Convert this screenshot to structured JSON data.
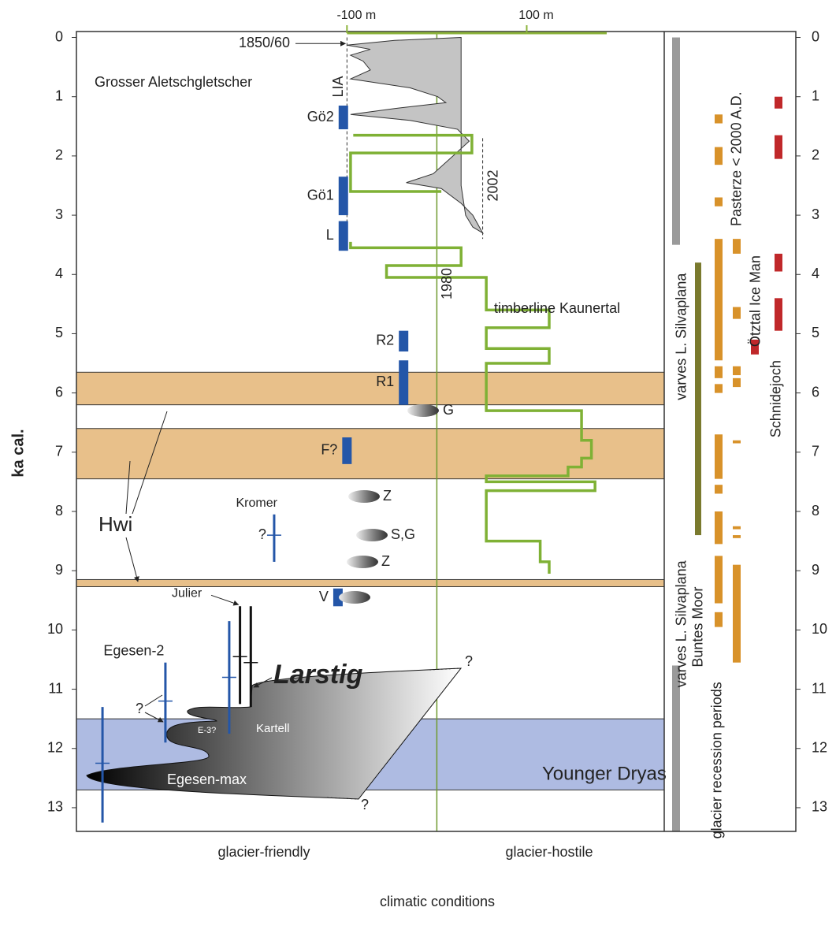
{
  "chart_data": {
    "type": "timeline",
    "y_label": "ka cal.",
    "x_label": "climatic conditions",
    "x_side_labels": [
      "glacier-friendly",
      "glacier-hostile"
    ],
    "ylim": [
      -0.1,
      13.4
    ],
    "yticks": [
      0,
      1,
      2,
      3,
      4,
      5,
      6,
      7,
      8,
      9,
      10,
      11,
      12,
      13
    ],
    "xlim": [
      -401,
      253
    ],
    "xticks": [
      {
        "value": -100,
        "label": "-100 m"
      },
      {
        "value": 100,
        "label": "100 m"
      }
    ],
    "axis_color": "#8cb43c",
    "reference_line": {
      "label": "1980",
      "value": 0,
      "color": "#6f9a2e"
    },
    "hwi": {
      "label": "Hwi",
      "color": "#e8c08a",
      "intervals": [
        [
          5.65,
          6.2
        ],
        [
          6.6,
          7.45
        ],
        [
          9.15,
          9.27
        ]
      ]
    },
    "younger_dryas": {
      "label": "Younger Dryas",
      "color": "#aebbe2",
      "interval": [
        11.5,
        12.7
      ]
    },
    "aletsch": {
      "label": "Grosser Aletschgletscher",
      "color": "#c4c4c4",
      "x": [
        27,
        -47,
        -100,
        -74,
        -96,
        -82,
        -74,
        -96,
        -30,
        1,
        10,
        -47,
        -96,
        -30,
        23,
        36,
        18,
        -4,
        -34,
        5,
        27,
        40,
        51,
        40,
        32,
        27,
        27
      ],
      "t": [
        0,
        0.05,
        0.13,
        0.2,
        0.3,
        0.4,
        0.55,
        0.7,
        0.85,
        1.0,
        1.1,
        1.2,
        1.3,
        1.4,
        1.55,
        1.75,
        2.0,
        2.3,
        2.45,
        2.55,
        2.8,
        3.0,
        3.3,
        3.2,
        3.0,
        2.5,
        0
      ]
    },
    "lia": {
      "label": "LIA",
      "value": -100,
      "interval": [
        0,
        3.6
      ]
    },
    "marker_1850": {
      "label": "1850/60",
      "value": 0.13
    },
    "line_2002": {
      "label": "2002",
      "value": 51,
      "interval": [
        1.7,
        3.4
      ]
    },
    "timberline": {
      "label": "timberline Kaunertal",
      "color": "#7fb135",
      "x": [
        -93,
        39,
        39,
        -96,
        -96,
        5,
        null,
        -96,
        -96,
        27,
        27,
        -56,
        -56,
        55,
        55,
        125,
        125,
        55,
        55,
        125,
        125,
        55,
        55,
        161,
        161,
        172,
        172,
        161,
        161,
        146,
        146,
        55,
        55,
        176,
        176,
        55,
        55,
        115,
        115,
        125,
        125
      ],
      "t": [
        1.65,
        1.65,
        1.95,
        1.95,
        2.6,
        2.6,
        null,
        3.45,
        3.55,
        3.55,
        3.85,
        3.85,
        4.05,
        4.05,
        4.6,
        4.6,
        4.9,
        4.9,
        5.25,
        5.25,
        5.5,
        5.5,
        6.3,
        6.3,
        6.8,
        6.8,
        7.1,
        7.1,
        7.25,
        7.25,
        7.4,
        7.4,
        7.5,
        7.5,
        7.65,
        7.65,
        8.5,
        8.5,
        8.85,
        8.85,
        9.05
      ]
    },
    "advances": {
      "color": "#2456a8",
      "items": [
        {
          "label": "Gö2",
          "x": -104,
          "from": 1.15,
          "to": 1.55
        },
        {
          "label": "Gö1",
          "x": -104,
          "from": 2.35,
          "to": 3.0
        },
        {
          "label": "L",
          "x": -104,
          "from": 3.1,
          "to": 3.6
        },
        {
          "label": "R2",
          "x": -37,
          "from": 4.95,
          "to": 5.3
        },
        {
          "label": "R1",
          "x": -37,
          "from": 5.45,
          "to": 6.2
        },
        {
          "label": "F?",
          "x": -100,
          "from": 6.75,
          "to": 7.2
        },
        {
          "label": "V",
          "x": -110,
          "from": 9.3,
          "to": 9.6
        }
      ]
    },
    "ranges": [
      {
        "label": "Kromer",
        "x": -181,
        "from": 8.05,
        "to": 8.85,
        "tick": 8.4
      },
      {
        "label": "Egesen-2",
        "x": -302,
        "from": 10.55,
        "to": 11.9,
        "tick": 11.2
      },
      {
        "x": -372,
        "from": 11.3,
        "to": 13.25,
        "tick": 12.25
      },
      {
        "x": -231,
        "from": 9.85,
        "to": 11.75,
        "tick": 10.8
      }
    ],
    "julier": {
      "label": "Julier",
      "lines": [
        {
          "x": -219,
          "from": 9.6,
          "to": 11.25,
          "tick": 10.45
        },
        {
          "x": -207,
          "from": 9.6,
          "to": 11.3,
          "tick": 10.55
        }
      ]
    },
    "glacier_labels": {
      "larstig": "Larstig",
      "kartell": "Kartell",
      "e3": "E-3?",
      "egesen_max": "Egesen-max"
    },
    "question_mark": "?",
    "moraines": [
      "G",
      "Z",
      "S,G",
      "Z"
    ],
    "right_panel": [
      {
        "label": "varves L. Silvaplana",
        "color": "#9a9a9a",
        "intervals": [
          [
            0,
            3.5
          ]
        ]
      },
      {
        "label": "varves L. Silvaplana",
        "color": "#9a9a9a",
        "intervals": [
          [
            10.6,
            13.4
          ]
        ]
      },
      {
        "label": "Buntes Moor",
        "color": "#7a7a2e",
        "intervals": [
          [
            3.8,
            8.4
          ]
        ]
      },
      {
        "label": "glacier recession periods",
        "color": "#d8922a",
        "intervals": [
          [
            1.3,
            1.45
          ],
          [
            1.85,
            2.15
          ],
          [
            2.7,
            2.85
          ],
          [
            3.4,
            5.45
          ],
          [
            5.55,
            5.75
          ],
          [
            5.85,
            6.0
          ],
          [
            6.7,
            7.45
          ],
          [
            7.55,
            7.7
          ],
          [
            8.0,
            8.55
          ],
          [
            8.75,
            9.55
          ],
          [
            9.7,
            9.95
          ]
        ]
      },
      {
        "label": "Pasterze < 2000 A.D.",
        "color": "#d8922a",
        "intervals": [
          [
            3.4,
            3.65
          ],
          [
            4.55,
            4.75
          ],
          [
            5.55,
            5.7
          ],
          [
            5.75,
            5.9
          ],
          [
            6.8,
            6.85
          ],
          [
            8.25,
            8.3
          ],
          [
            8.4,
            8.45
          ],
          [
            8.9,
            10.55
          ]
        ]
      },
      {
        "label": "Ötztal Ice Man",
        "color": "#c0282a",
        "intervals": [
          [
            5.1,
            5.35
          ]
        ]
      },
      {
        "label": "Schnidejoch",
        "color": "#c0282a",
        "intervals": [
          [
            1.0,
            1.2
          ],
          [
            1.65,
            2.05
          ],
          [
            3.65,
            3.95
          ],
          [
            4.4,
            4.95
          ]
        ]
      }
    ]
  }
}
